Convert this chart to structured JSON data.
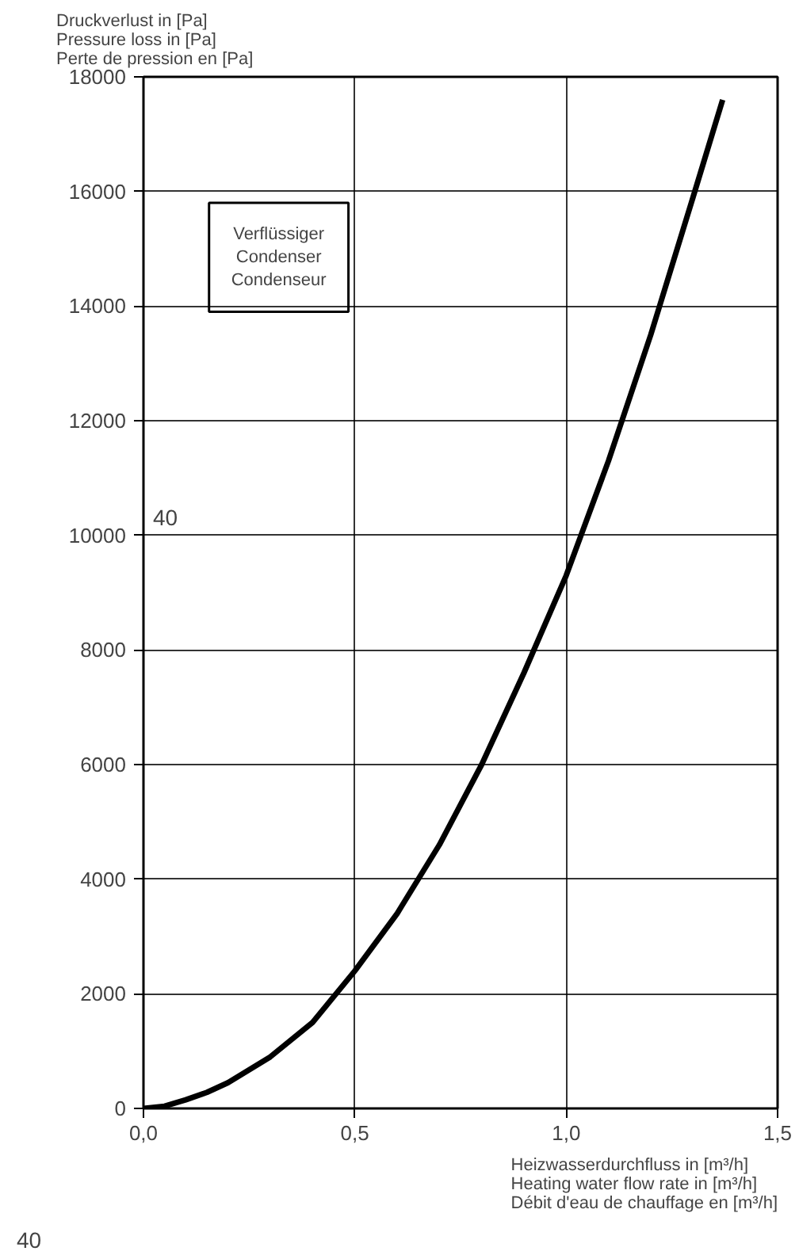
{
  "chart_data": {
    "type": "line",
    "ylabel": "Druckverlust in [Pa]\nPressure loss in [Pa]\nPerte de pression en [Pa]",
    "xlabel": "Heizwasserdurchfluss in [m³/h]\nHeating water flow rate in [m³/h]\nDébit d'eau de chauffage en [m³/h]",
    "annotations": [
      "Verflüssiger\nCondenser\nCondenseur",
      "40",
      "40"
    ],
    "xlim": [
      0,
      1.5
    ],
    "xticks": [
      {
        "value": 0,
        "label": "0,0"
      },
      {
        "value": 0.5,
        "label": "0,5"
      },
      {
        "value": 1.0,
        "label": "1,0"
      },
      {
        "value": 1.5,
        "label": "1,5"
      }
    ],
    "ylim": [
      0,
      18000
    ],
    "yticks": [
      0,
      2000,
      4000,
      6000,
      8000,
      10000,
      12000,
      14000,
      16000,
      18000
    ],
    "grid": true,
    "marker": "none",
    "line_style": "solid",
    "series": [
      {
        "color": "#000000",
        "x": [
          0,
          0.05,
          0.1,
          0.15,
          0.2,
          0.3,
          0.4,
          0.5,
          0.6,
          0.7,
          0.8,
          0.9,
          1.0,
          1.1,
          1.2,
          1.3,
          1.37
        ],
        "values": [
          0,
          40,
          150,
          280,
          450,
          900,
          1500,
          2400,
          3400,
          4600,
          6000,
          7600,
          9300,
          11300,
          13500,
          15900,
          17600
        ]
      }
    ]
  }
}
